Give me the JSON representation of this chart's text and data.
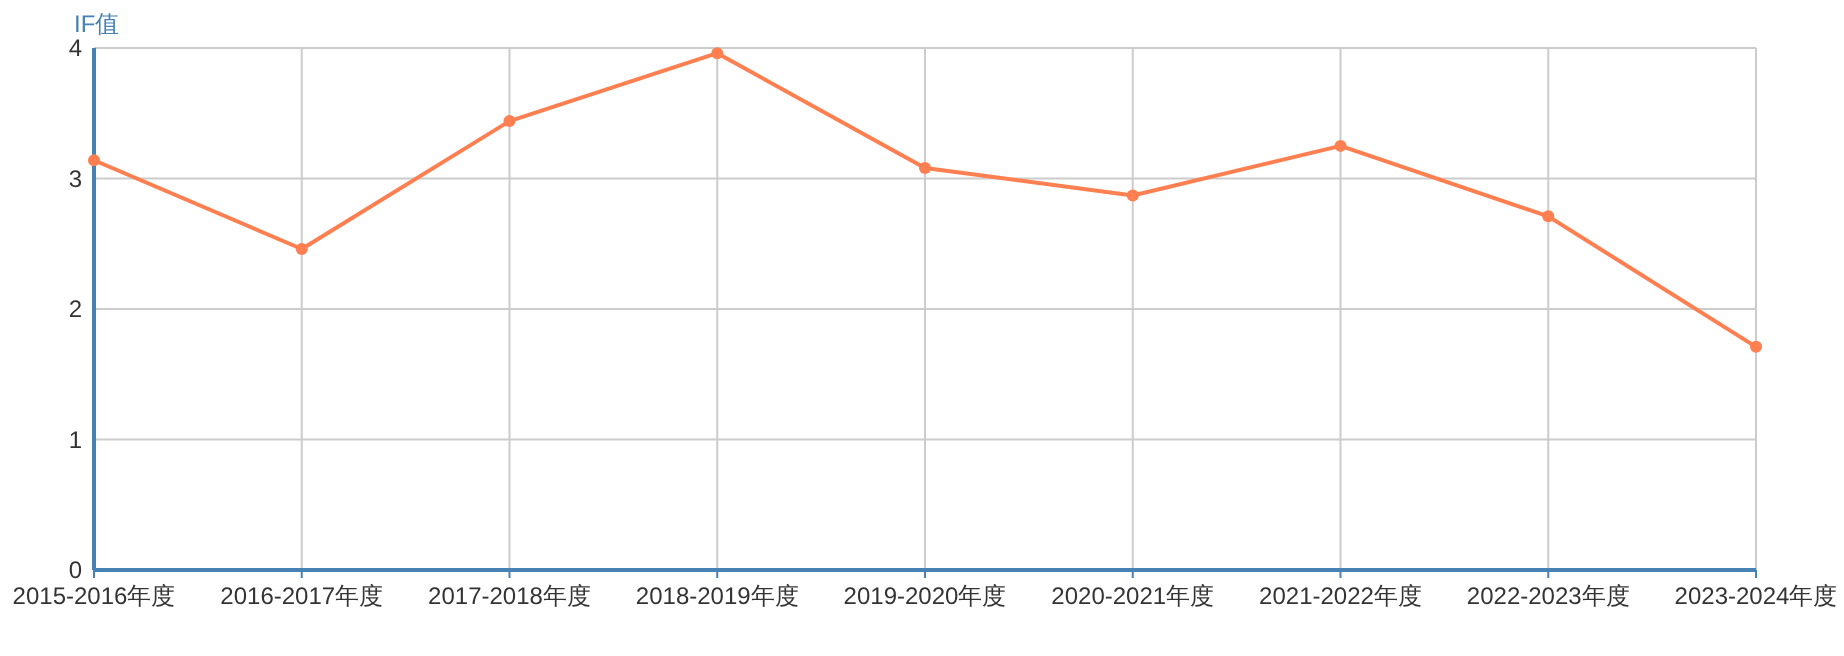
{
  "chart_data": {
    "type": "line",
    "ylabel": "IF值",
    "categories": [
      "2015-2016年度",
      "2016-2017年度",
      "2017-2018年度",
      "2018-2019年度",
      "2019-2020年度",
      "2020-2021年度",
      "2021-2022年度",
      "2022-2023年度",
      "2023-2024年度"
    ],
    "series": [
      {
        "color": "#ff7f50",
        "values": [
          3.14,
          2.46,
          3.44,
          3.96,
          3.08,
          2.87,
          3.25,
          2.71,
          1.71
        ]
      }
    ],
    "ylim": [
      0,
      4
    ],
    "yticks": [
      0,
      1,
      2,
      3,
      4
    ],
    "grid": true,
    "marker": "circle",
    "line_style": "solid"
  }
}
